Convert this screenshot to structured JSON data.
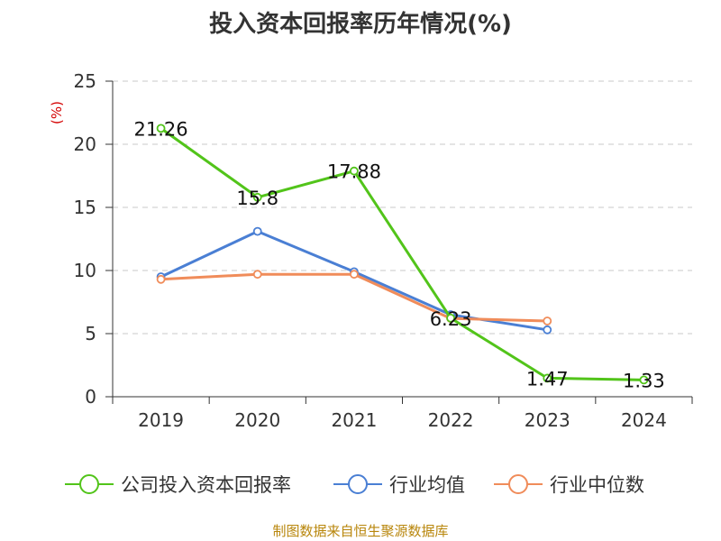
{
  "title": "投入资本回报率历年情况(%)",
  "source": "制图数据来自恒生聚源数据库",
  "chart_data": {
    "type": "line",
    "title": "投入资本回报率历年情况(%)",
    "ylabel": "(%)",
    "xlabel": "",
    "ylim": [
      0,
      25
    ],
    "yticks": [
      0,
      5,
      10,
      15,
      20,
      25
    ],
    "grid": true,
    "legend_position": "bottom",
    "categories": [
      "2019",
      "2020",
      "2021",
      "2022",
      "2023",
      "2024"
    ],
    "series": [
      {
        "name": "公司投入资本回报率",
        "color": "#52c41a",
        "values": [
          21.26,
          15.8,
          17.88,
          6.23,
          1.47,
          1.33
        ],
        "labels": [
          "21.26",
          "15.8",
          "17.88",
          "6.23",
          "1.47",
          "1.33"
        ]
      },
      {
        "name": "行业均值",
        "color": "#4a7fd4",
        "values": [
          9.5,
          13.1,
          9.9,
          6.5,
          5.3,
          null
        ]
      },
      {
        "name": "行业中位数",
        "color": "#f08c5a",
        "values": [
          9.3,
          9.7,
          9.7,
          6.2,
          6.0,
          null
        ]
      }
    ]
  }
}
